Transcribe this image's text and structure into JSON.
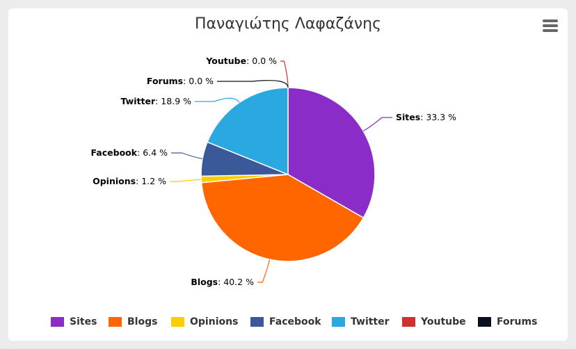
{
  "menu_icon": "hamburger-menu-icon",
  "chart_data": {
    "type": "pie",
    "title": "Παναγιώτης Λαφαζάνης",
    "unit": "%",
    "legend_position": "bottom",
    "slices": [
      {
        "name": "Sites",
        "value": 33.3,
        "label": "33.3 %",
        "color": "#8b2cc8"
      },
      {
        "name": "Blogs",
        "value": 40.2,
        "label": "40.2 %",
        "color": "#ff6600"
      },
      {
        "name": "Opinions",
        "value": 1.2,
        "label": "1.2 %",
        "color": "#ffcc00"
      },
      {
        "name": "Facebook",
        "value": 6.4,
        "label": "6.4 %",
        "color": "#3b5998"
      },
      {
        "name": "Twitter",
        "value": 18.9,
        "label": "18.9 %",
        "color": "#29a9e0"
      },
      {
        "name": "Youtube",
        "value": 0.0,
        "label": "0.0 %",
        "color": "#d0312d"
      },
      {
        "name": "Forums",
        "value": 0.0,
        "label": "0.0 %",
        "color": "#0a0f1e"
      }
    ]
  }
}
